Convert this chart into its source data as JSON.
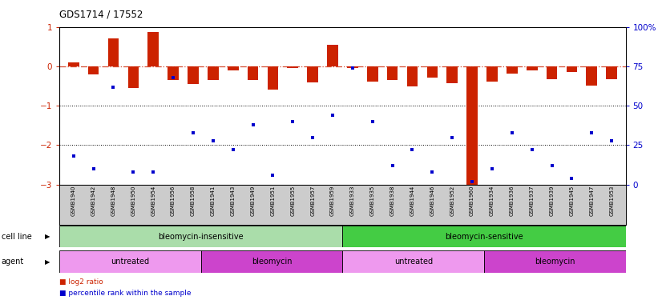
{
  "title": "GDS1714 / 17552",
  "samples": [
    "GSMB1940",
    "GSMB1942",
    "GSMB1948",
    "GSMB1950",
    "GSMB1954",
    "GSMB1956",
    "GSMB1958",
    "GSMB1941",
    "GSMB1943",
    "GSMB1949",
    "GSMB1951",
    "GSMB1955",
    "GSMB1957",
    "GSMB1959",
    "GSMB1933",
    "GSMB1935",
    "GSMB1938",
    "GSMB1944",
    "GSMB1946",
    "GSMB1952",
    "GSMB1960",
    "GSMB1934",
    "GSMB1936",
    "GSMB1937",
    "GSMB1939",
    "GSMB1945",
    "GSMB1947",
    "GSMB1953"
  ],
  "log2_ratio": [
    0.1,
    -0.2,
    0.72,
    -0.55,
    0.88,
    -0.35,
    -0.45,
    -0.35,
    -0.1,
    -0.35,
    -0.58,
    -0.05,
    -0.4,
    0.55,
    -0.05,
    -0.38,
    -0.35,
    -0.5,
    -0.28,
    -0.42,
    -3.1,
    -0.38,
    -0.18,
    -0.1,
    -0.33,
    -0.15,
    -0.48,
    -0.32
  ],
  "percentile_rank_pct": [
    18,
    10,
    62,
    8,
    8,
    68,
    33,
    28,
    22,
    38,
    6,
    40,
    30,
    44,
    74,
    40,
    12,
    22,
    8,
    30,
    2,
    10,
    33,
    22,
    12,
    4,
    33,
    28
  ],
  "ylim_left": [
    -3.0,
    1.0
  ],
  "ylim_right": [
    0,
    100
  ],
  "yticks_left": [
    -3,
    -2,
    -1,
    0,
    1
  ],
  "yticks_right": [
    0,
    25,
    50,
    75,
    100
  ],
  "hlines": [
    -1.0,
    -2.0
  ],
  "zero_line": 0.0,
  "bar_color": "#cc2200",
  "scatter_color": "#0000cc",
  "cell_line_groups": [
    {
      "label": "bleomycin-insensitive",
      "start": 0,
      "end": 14,
      "color": "#aaddaa"
    },
    {
      "label": "bleomycin-sensitive",
      "start": 14,
      "end": 28,
      "color": "#44cc44"
    }
  ],
  "agent_groups": [
    {
      "label": "untreated",
      "start": 0,
      "end": 7,
      "color": "#ee99ee"
    },
    {
      "label": "bleomycin",
      "start": 7,
      "end": 14,
      "color": "#cc44cc"
    },
    {
      "label": "untreated",
      "start": 14,
      "end": 21,
      "color": "#ee99ee"
    },
    {
      "label": "bleomycin",
      "start": 21,
      "end": 28,
      "color": "#cc44cc"
    }
  ],
  "cell_line_label": "cell line",
  "agent_label": "agent",
  "legend_log2": "log2 ratio",
  "legend_pct": "percentile rank within the sample",
  "bg_color": "#ffffff",
  "tick_color_left": "#cc2200",
  "tick_color_right": "#0000cc",
  "xtick_bg_color": "#cccccc",
  "fig_width": 8.26,
  "fig_height": 3.75,
  "dpi": 100
}
